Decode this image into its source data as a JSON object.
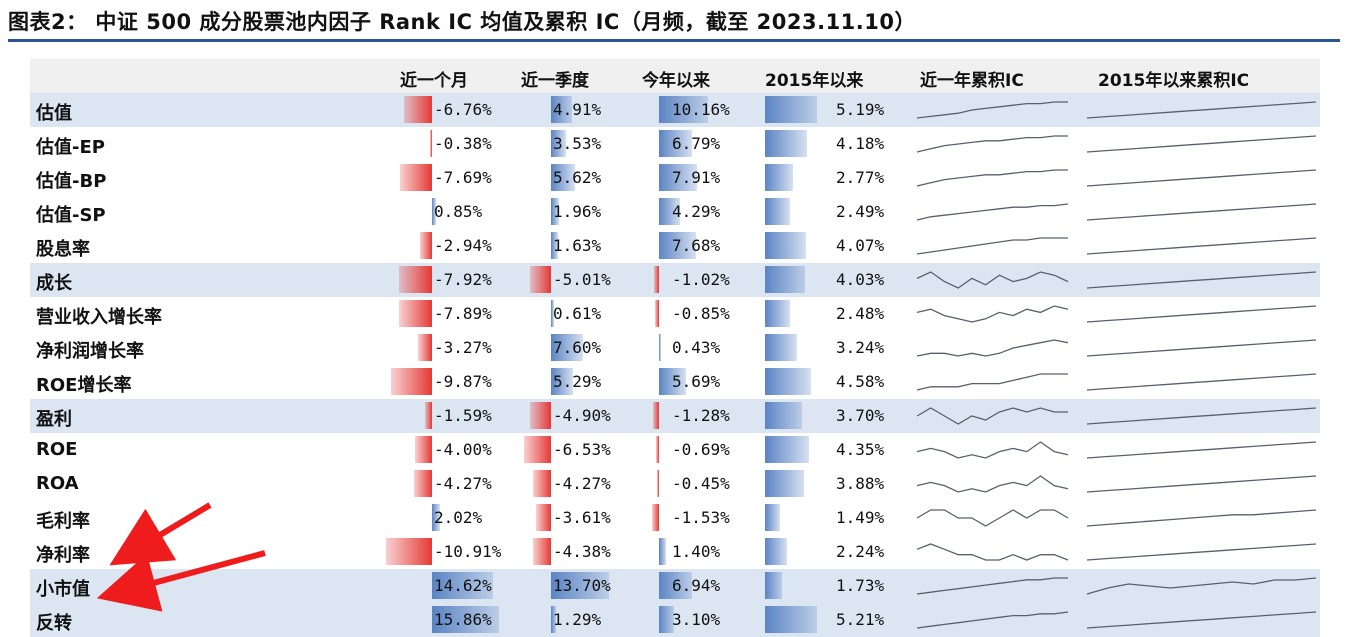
{
  "title": "图表2： 中证 500 成分股票池内因子 Rank IC 均值及累积 IC（月频，截至 2023.11.10）",
  "headers": [
    "近一个月",
    "近一季度",
    "今年以来",
    "2015年以来",
    "近一年累积IC",
    "2015年以来累积IC"
  ],
  "colors": {
    "negative": "#e53935",
    "positive": "#5b84c4",
    "band": "#dce6f2",
    "rule": "#2f5496",
    "arrow": "#ee1c1c"
  },
  "rows": [
    {
      "name": "估值",
      "band": true,
      "m1": "-6.76%",
      "q1": "4.91%",
      "ytd": "10.16%",
      "s15": "5.19%",
      "v": [
        -6.76,
        4.91,
        10.16,
        5.19
      ]
    },
    {
      "name": "估值-EP",
      "band": false,
      "m1": "-0.38%",
      "q1": "3.53%",
      "ytd": "6.79%",
      "s15": "4.18%",
      "v": [
        -0.38,
        3.53,
        6.79,
        4.18
      ]
    },
    {
      "name": "估值-BP",
      "band": false,
      "m1": "-7.69%",
      "q1": "5.62%",
      "ytd": "7.91%",
      "s15": "2.77%",
      "v": [
        -7.69,
        5.62,
        7.91,
        2.77
      ]
    },
    {
      "name": "估值-SP",
      "band": false,
      "m1": "0.85%",
      "q1": "1.96%",
      "ytd": "4.29%",
      "s15": "2.49%",
      "v": [
        0.85,
        1.96,
        4.29,
        2.49
      ]
    },
    {
      "name": "股息率",
      "band": false,
      "m1": "-2.94%",
      "q1": "1.63%",
      "ytd": "7.68%",
      "s15": "4.07%",
      "v": [
        -2.94,
        1.63,
        7.68,
        4.07
      ]
    },
    {
      "name": "成长",
      "band": true,
      "m1": "-7.92%",
      "q1": "-5.01%",
      "ytd": "-1.02%",
      "s15": "4.03%",
      "v": [
        -7.92,
        -5.01,
        -1.02,
        4.03
      ]
    },
    {
      "name": "营业收入增长率",
      "band": false,
      "m1": "-7.89%",
      "q1": "0.61%",
      "ytd": "-0.85%",
      "s15": "2.48%",
      "v": [
        -7.89,
        0.61,
        -0.85,
        2.48
      ]
    },
    {
      "name": "净利润增长率",
      "band": false,
      "m1": "-3.27%",
      "q1": "7.60%",
      "ytd": "0.43%",
      "s15": "3.24%",
      "v": [
        -3.27,
        7.6,
        0.43,
        3.24
      ]
    },
    {
      "name": "ROE增长率",
      "band": false,
      "m1": "-9.87%",
      "q1": "5.29%",
      "ytd": "5.69%",
      "s15": "4.58%",
      "v": [
        -9.87,
        5.29,
        5.69,
        4.58
      ]
    },
    {
      "name": "盈利",
      "band": true,
      "m1": "-1.59%",
      "q1": "-4.90%",
      "ytd": "-1.28%",
      "s15": "3.70%",
      "v": [
        -1.59,
        -4.9,
        -1.28,
        3.7
      ]
    },
    {
      "name": "ROE",
      "band": false,
      "m1": "-4.00%",
      "q1": "-6.53%",
      "ytd": "-0.69%",
      "s15": "4.35%",
      "v": [
        -4.0,
        -6.53,
        -0.69,
        4.35
      ]
    },
    {
      "name": "ROA",
      "band": false,
      "m1": "-4.27%",
      "q1": "-4.27%",
      "ytd": "-0.45%",
      "s15": "3.88%",
      "v": [
        -4.27,
        -4.27,
        -0.45,
        3.88
      ]
    },
    {
      "name": "毛利率",
      "band": false,
      "m1": "2.02%",
      "q1": "-3.61%",
      "ytd": "-1.53%",
      "s15": "1.49%",
      "v": [
        2.02,
        -3.61,
        -1.53,
        1.49
      ]
    },
    {
      "name": "净利率",
      "band": false,
      "m1": "-10.91%",
      "q1": "-4.38%",
      "ytd": "1.40%",
      "s15": "2.24%",
      "v": [
        -10.91,
        -4.38,
        1.4,
        2.24
      ]
    },
    {
      "name": "小市值",
      "band": true,
      "m1": "14.62%",
      "q1": "13.70%",
      "ytd": "6.94%",
      "s15": "1.73%",
      "v": [
        14.62,
        13.7,
        6.94,
        1.73
      ]
    },
    {
      "name": "反转",
      "band": true,
      "m1": "15.86%",
      "q1": "1.29%",
      "ytd": "3.10%",
      "s15": "5.21%",
      "v": [
        15.86,
        1.29,
        3.1,
        5.21
      ]
    }
  ],
  "sparklines": {
    "recent": [
      [
        2,
        3,
        4,
        5,
        7,
        8,
        9,
        10,
        11,
        11,
        12,
        12
      ],
      [
        1,
        3,
        5,
        6,
        7,
        8,
        8,
        9,
        10,
        10,
        11,
        11
      ],
      [
        1,
        3,
        5,
        6,
        7,
        8,
        8,
        9,
        10,
        10,
        11,
        11
      ],
      [
        1,
        3,
        4,
        5,
        6,
        7,
        8,
        9,
        9,
        10,
        10,
        11
      ],
      [
        2,
        3,
        4,
        5,
        6,
        7,
        8,
        9,
        9,
        10,
        10,
        10
      ],
      [
        5,
        7,
        4,
        2,
        5,
        3,
        6,
        4,
        5,
        7,
        6,
        4
      ],
      [
        8,
        9,
        7,
        6,
        5,
        6,
        8,
        7,
        9,
        8,
        10,
        9
      ],
      [
        3,
        4,
        4,
        3,
        4,
        3,
        4,
        6,
        7,
        8,
        9,
        8
      ],
      [
        2,
        3,
        3,
        3,
        4,
        4,
        4,
        5,
        6,
        7,
        7,
        7
      ],
      [
        5,
        7,
        5,
        3,
        5,
        4,
        6,
        7,
        6,
        7,
        6,
        6
      ],
      [
        5,
        6,
        5,
        3,
        4,
        3,
        5,
        6,
        5,
        8,
        5,
        4
      ],
      [
        5,
        6,
        5,
        3,
        4,
        3,
        5,
        6,
        5,
        8,
        5,
        4
      ],
      [
        6,
        7,
        7,
        6,
        6,
        5,
        6,
        7,
        6,
        7,
        7,
        6
      ],
      [
        7,
        8,
        7,
        6,
        6,
        5,
        5,
        6,
        5,
        6,
        6,
        5
      ],
      [
        1,
        2,
        3,
        4,
        5,
        6,
        7,
        8,
        9,
        9,
        10,
        10
      ],
      [
        1,
        2,
        3,
        4,
        5,
        6,
        7,
        8,
        8,
        9,
        9,
        10
      ]
    ],
    "since2015": [
      [
        1,
        2,
        3,
        4,
        5,
        6,
        7,
        8,
        9,
        10,
        11,
        12
      ],
      [
        1,
        2,
        3,
        4,
        5,
        6,
        7,
        8,
        9,
        10,
        11,
        12
      ],
      [
        1,
        2,
        3,
        4,
        5,
        6,
        7,
        8,
        9,
        10,
        11,
        12
      ],
      [
        1,
        2,
        3,
        4,
        5,
        6,
        7,
        8,
        9,
        10,
        11,
        12
      ],
      [
        1,
        2,
        3,
        4,
        5,
        6,
        7,
        8,
        9,
        10,
        11,
        12
      ],
      [
        1,
        2,
        3,
        4,
        5,
        6,
        7,
        8,
        9,
        10,
        11,
        12
      ],
      [
        1,
        2,
        3,
        4,
        5,
        6,
        7,
        8,
        9,
        10,
        11,
        12
      ],
      [
        1,
        2,
        3,
        4,
        5,
        6,
        7,
        8,
        9,
        10,
        11,
        12
      ],
      [
        1,
        2,
        3,
        4,
        5,
        6,
        7,
        8,
        9,
        10,
        11,
        12
      ],
      [
        1,
        2,
        3,
        4,
        5,
        6,
        7,
        8,
        9,
        10,
        11,
        12
      ],
      [
        1,
        2,
        3,
        4,
        5,
        6,
        7,
        8,
        9,
        10,
        11,
        12
      ],
      [
        1,
        2,
        3,
        4,
        5,
        6,
        7,
        8,
        9,
        10,
        11,
        12
      ],
      [
        1,
        2,
        3,
        4,
        5,
        6,
        7,
        8,
        8,
        9,
        10,
        11
      ],
      [
        1,
        2,
        3,
        4,
        5,
        6,
        7,
        8,
        9,
        10,
        11,
        12
      ],
      [
        1,
        4,
        6,
        5,
        4,
        5,
        6,
        7,
        6,
        8,
        8,
        9
      ],
      [
        1,
        2,
        3,
        4,
        5,
        6,
        7,
        8,
        9,
        10,
        11,
        12
      ]
    ]
  }
}
